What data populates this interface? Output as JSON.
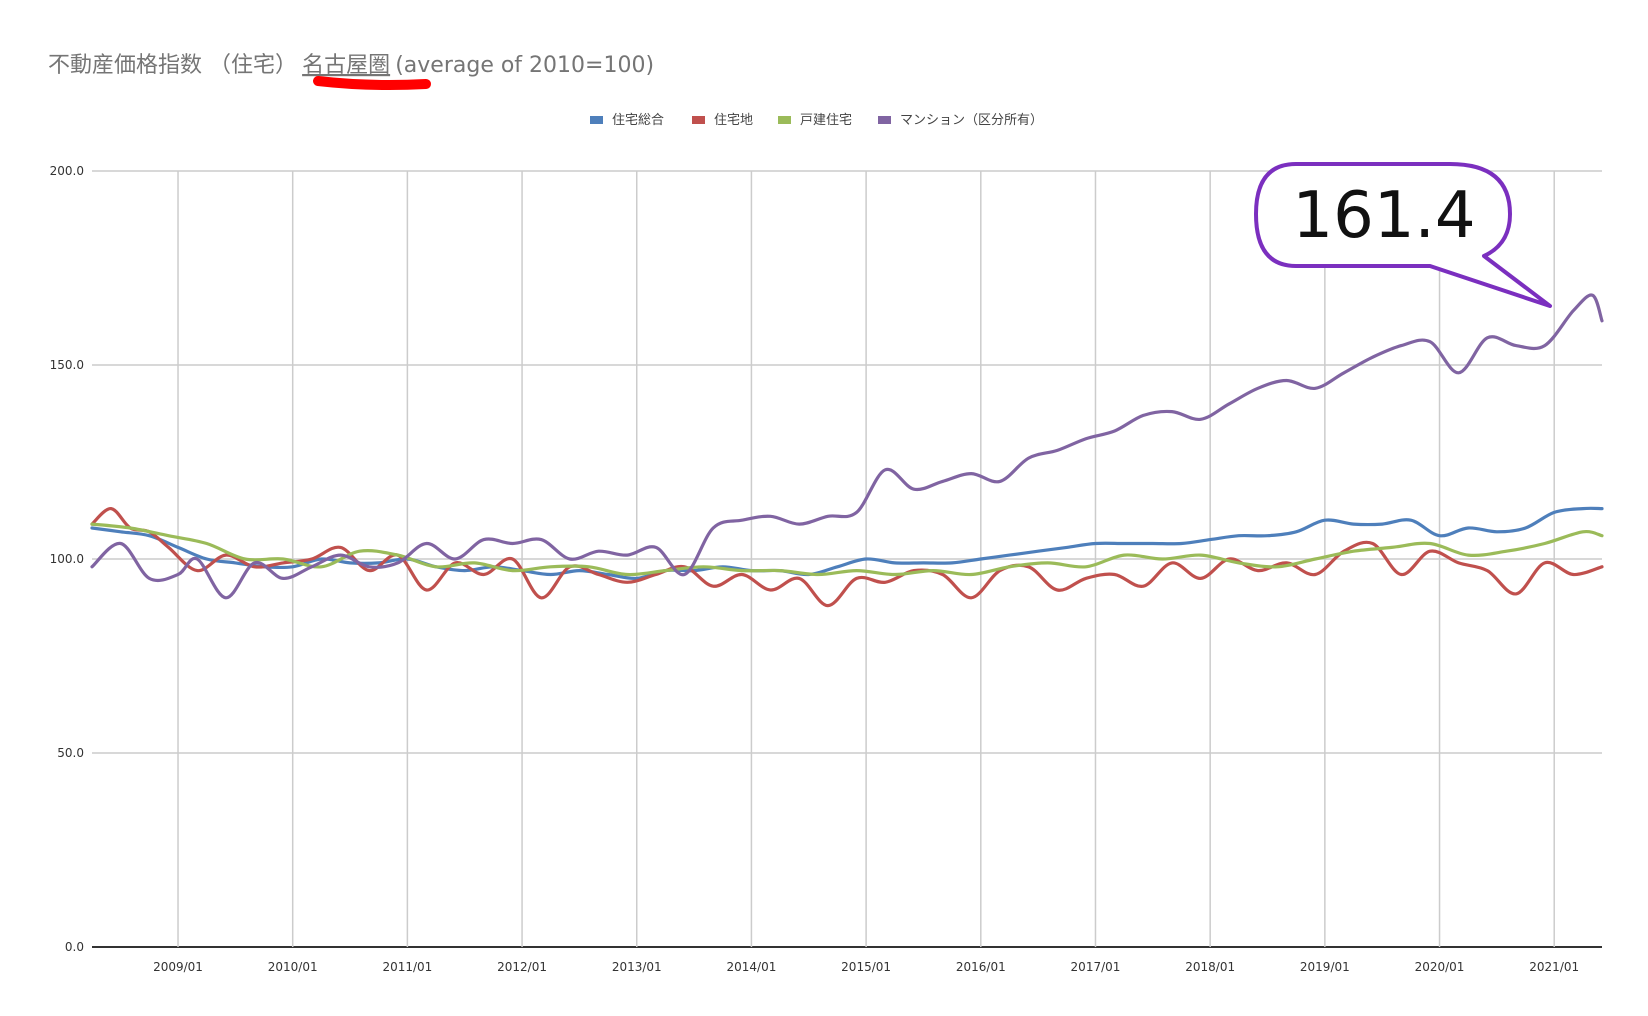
{
  "title": {
    "main": "不動産価格指数 （住宅）",
    "region": "名古屋圏",
    "suffix": "(average of 2010=100)"
  },
  "colors": {
    "highlight_underline": "#ff0000",
    "callout_border": "#7b2fbf",
    "grid": "#cccccc",
    "axis": "#333333"
  },
  "callout": {
    "value": "161.4"
  },
  "chart_data": {
    "type": "line",
    "ylim": [
      0,
      200
    ],
    "xlim": [
      "2008/04",
      "2021/06"
    ],
    "grid": true,
    "legend_placement": "top",
    "y_ticks": [
      "0.0",
      "50.0",
      "100.0",
      "150.0",
      "200.0"
    ],
    "x_ticks": [
      "2009/01",
      "2010/01",
      "2011/01",
      "2012/01",
      "2013/01",
      "2014/01",
      "2015/01",
      "2016/01",
      "2017/01",
      "2018/01",
      "2019/01",
      "2020/01",
      "2021/01"
    ],
    "series": [
      {
        "name": "住宅総合",
        "color": "#4e7fbb",
        "x": [
          "2008/04",
          "2008/07",
          "2008/10",
          "2009/01",
          "2009/04",
          "2009/07",
          "2009/10",
          "2010/01",
          "2010/04",
          "2010/07",
          "2010/10",
          "2011/01",
          "2011/04",
          "2011/07",
          "2011/10",
          "2012/01",
          "2012/04",
          "2012/07",
          "2012/10",
          "2013/01",
          "2013/04",
          "2013/07",
          "2013/10",
          "2014/01",
          "2014/04",
          "2014/07",
          "2014/10",
          "2015/01",
          "2015/04",
          "2015/07",
          "2015/10",
          "2016/01",
          "2016/04",
          "2016/07",
          "2016/10",
          "2017/01",
          "2017/04",
          "2017/07",
          "2017/10",
          "2018/01",
          "2018/04",
          "2018/07",
          "2018/10",
          "2019/01",
          "2019/04",
          "2019/07",
          "2019/10",
          "2020/01",
          "2020/04",
          "2020/07",
          "2020/10",
          "2021/01",
          "2021/04",
          "2021/06"
        ],
        "values": [
          108,
          107,
          106,
          103,
          100,
          99,
          98,
          98,
          100,
          99,
          99,
          100,
          98,
          97,
          98,
          97,
          96,
          97,
          96,
          95,
          97,
          97,
          98,
          97,
          97,
          96,
          98,
          100,
          99,
          99,
          99,
          100,
          101,
          102,
          103,
          104,
          104,
          104,
          104,
          105,
          106,
          106,
          107,
          110,
          109,
          109,
          110,
          106,
          108,
          107,
          108,
          112,
          113,
          113
        ]
      },
      {
        "name": "住宅地",
        "color": "#c0504d",
        "x": [
          "2008/04",
          "2008/06",
          "2008/08",
          "2008/10",
          "2008/12",
          "2009/03",
          "2009/06",
          "2009/09",
          "2009/12",
          "2010/03",
          "2010/06",
          "2010/09",
          "2010/12",
          "2011/03",
          "2011/06",
          "2011/09",
          "2011/12",
          "2012/03",
          "2012/06",
          "2012/09",
          "2012/12",
          "2013/03",
          "2013/06",
          "2013/09",
          "2013/12",
          "2014/03",
          "2014/06",
          "2014/09",
          "2014/12",
          "2015/03",
          "2015/06",
          "2015/09",
          "2015/12",
          "2016/03",
          "2016/06",
          "2016/09",
          "2016/12",
          "2017/03",
          "2017/06",
          "2017/09",
          "2017/12",
          "2018/03",
          "2018/06",
          "2018/09",
          "2018/12",
          "2019/03",
          "2019/06",
          "2019/09",
          "2019/12",
          "2020/03",
          "2020/06",
          "2020/09",
          "2020/12",
          "2021/03",
          "2021/06"
        ],
        "values": [
          109,
          113,
          108,
          107,
          103,
          97,
          101,
          98,
          99,
          100,
          103,
          97,
          101,
          92,
          99,
          96,
          100,
          90,
          98,
          96,
          94,
          96,
          98,
          93,
          96,
          92,
          95,
          88,
          95,
          94,
          97,
          96,
          90,
          97,
          98,
          92,
          95,
          96,
          93,
          99,
          95,
          100,
          97,
          99,
          96,
          102,
          104,
          96,
          102,
          99,
          97,
          91,
          99,
          96,
          98
        ]
      },
      {
        "name": "戸建住宅",
        "color": "#9bbb59",
        "x": [
          "2008/04",
          "2008/08",
          "2008/12",
          "2009/04",
          "2009/08",
          "2009/12",
          "2010/04",
          "2010/08",
          "2010/12",
          "2011/04",
          "2011/08",
          "2011/12",
          "2012/04",
          "2012/08",
          "2012/12",
          "2013/04",
          "2013/08",
          "2013/12",
          "2014/04",
          "2014/08",
          "2014/12",
          "2015/04",
          "2015/08",
          "2015/12",
          "2016/04",
          "2016/08",
          "2016/12",
          "2017/04",
          "2017/08",
          "2017/12",
          "2018/04",
          "2018/08",
          "2018/12",
          "2019/04",
          "2019/08",
          "2019/12",
          "2020/04",
          "2020/08",
          "2020/12",
          "2021/04",
          "2021/06"
        ],
        "values": [
          109,
          108,
          106,
          104,
          100,
          100,
          98,
          102,
          101,
          98,
          99,
          97,
          98,
          98,
          96,
          97,
          98,
          97,
          97,
          96,
          97,
          96,
          97,
          96,
          98,
          99,
          98,
          101,
          100,
          101,
          99,
          98,
          100,
          102,
          103,
          104,
          101,
          102,
          104,
          107,
          106
        ]
      },
      {
        "name": "マンション（区分所有）",
        "color": "#8064a2",
        "x": [
          "2008/04",
          "2008/07",
          "2008/10",
          "2009/01",
          "2009/03",
          "2009/06",
          "2009/09",
          "2009/12",
          "2010/03",
          "2010/06",
          "2010/09",
          "2010/12",
          "2011/03",
          "2011/06",
          "2011/09",
          "2011/12",
          "2012/03",
          "2012/06",
          "2012/09",
          "2012/12",
          "2013/03",
          "2013/06",
          "2013/09",
          "2013/12",
          "2014/03",
          "2014/06",
          "2014/09",
          "2014/12",
          "2015/03",
          "2015/06",
          "2015/09",
          "2015/12",
          "2016/03",
          "2016/06",
          "2016/09",
          "2016/12",
          "2017/03",
          "2017/06",
          "2017/09",
          "2017/12",
          "2018/03",
          "2018/06",
          "2018/09",
          "2018/12",
          "2019/03",
          "2019/06",
          "2019/09",
          "2019/12",
          "2020/03",
          "2020/06",
          "2020/09",
          "2020/12",
          "2021/03",
          "2021/05",
          "2021/06"
        ],
        "values": [
          98,
          104,
          95,
          96,
          100,
          90,
          99,
          95,
          98,
          101,
          98,
          99,
          104,
          100,
          105,
          104,
          105,
          100,
          102,
          101,
          103,
          96,
          108,
          110,
          111,
          109,
          111,
          112,
          123,
          118,
          120,
          122,
          120,
          126,
          128,
          131,
          133,
          137,
          138,
          136,
          140,
          144,
          146,
          144,
          148,
          152,
          155,
          156,
          148,
          157,
          155,
          155,
          164,
          168,
          161.4
        ]
      }
    ]
  }
}
